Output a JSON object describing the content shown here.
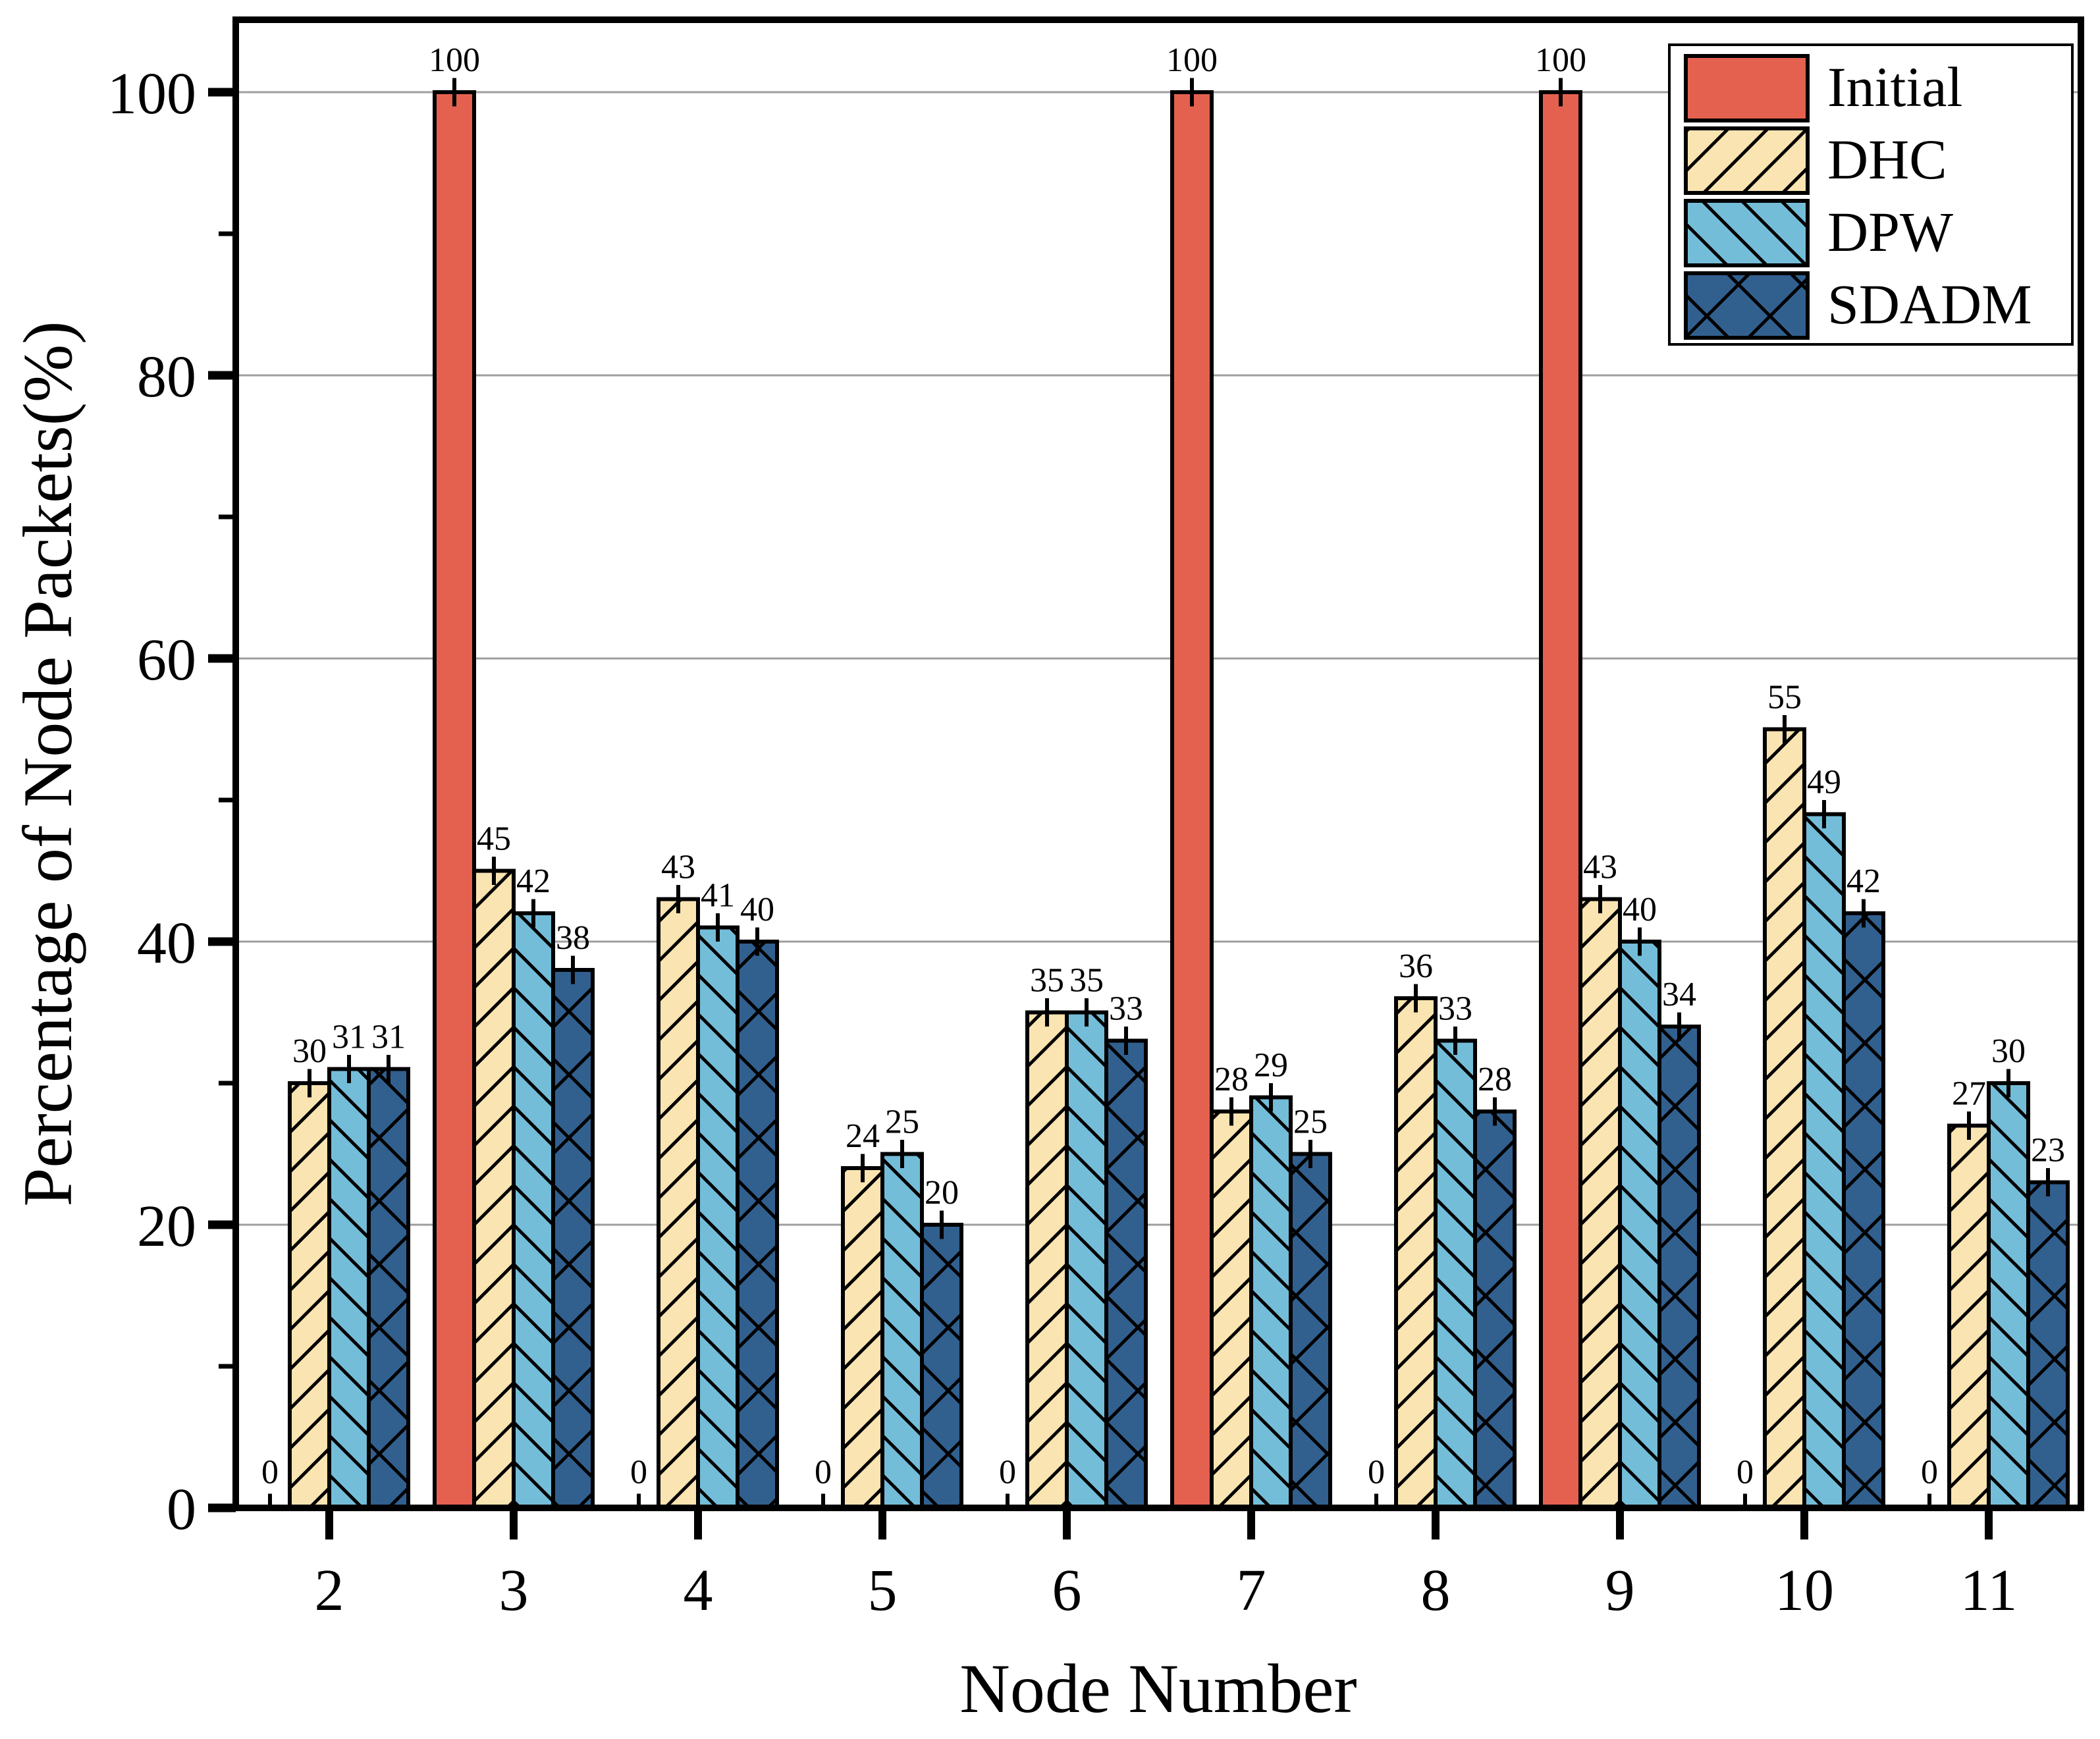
{
  "chart_data": {
    "type": "bar",
    "title": "",
    "xlabel": "Node Number",
    "ylabel": "Percentage of Node Packets(%)",
    "categories": [
      "2",
      "3",
      "4",
      "5",
      "6",
      "7",
      "8",
      "9",
      "10",
      "11"
    ],
    "series": [
      {
        "name": "Initial",
        "color": "#E5614F",
        "hatch": "none",
        "values": [
          0,
          100,
          0,
          0,
          0,
          100,
          0,
          100,
          0,
          0
        ]
      },
      {
        "name": "DHC",
        "color": "#FAE4B1",
        "hatch": "forward",
        "values": [
          30,
          45,
          43,
          24,
          35,
          28,
          36,
          43,
          55,
          27
        ]
      },
      {
        "name": "DPW",
        "color": "#74BDD9",
        "hatch": "backward",
        "values": [
          31,
          42,
          41,
          25,
          35,
          29,
          33,
          40,
          49,
          30
        ]
      },
      {
        "name": "SDADM",
        "color": "#31608F",
        "hatch": "cross",
        "values": [
          31,
          38,
          40,
          20,
          33,
          25,
          28,
          34,
          42,
          23
        ]
      }
    ],
    "ylim": [
      0,
      105
    ],
    "yticks": [
      0,
      20,
      40,
      60,
      80,
      100
    ],
    "yticks_minor": [
      10,
      30,
      50,
      70,
      90
    ],
    "grid": true,
    "grid_color": "#9E9E9E",
    "bar_labels": true,
    "error_bar": 1.0,
    "legend_position": "upper right",
    "legend_entries": [
      "Initial",
      "DHC",
      "DPW",
      "SDADM"
    ]
  }
}
